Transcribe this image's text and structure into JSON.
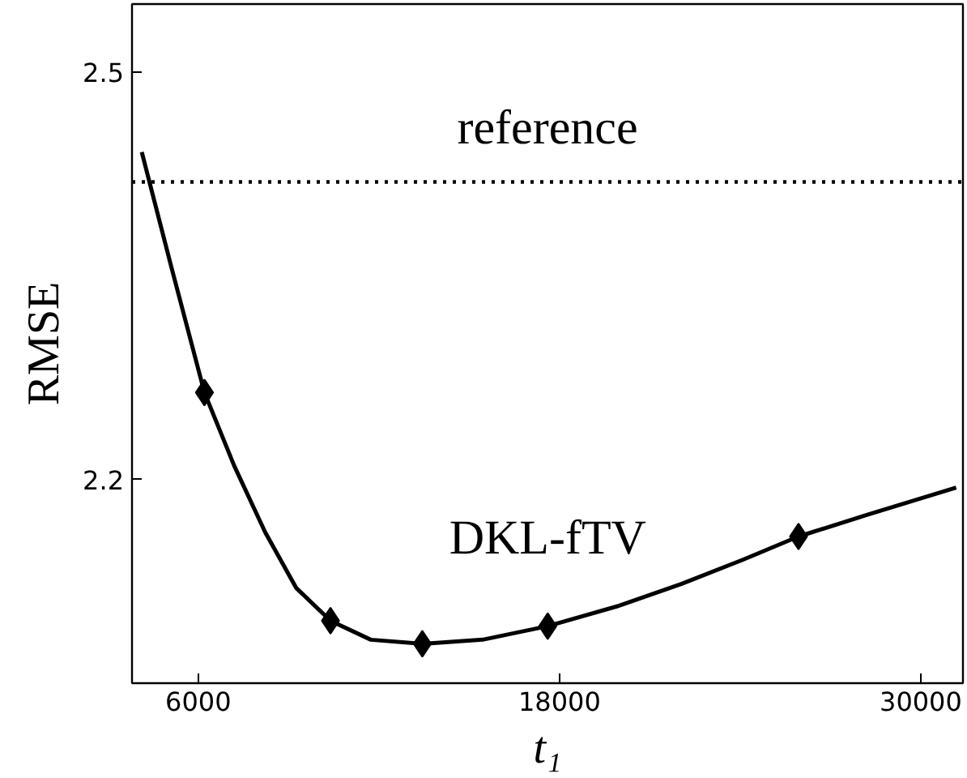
{
  "chart_data": {
    "type": "line",
    "xlabel": "t₁",
    "ylabel": "RMSE",
    "xlim": [
      3800,
      31400
    ],
    "ylim": [
      2.05,
      2.55
    ],
    "xticks": [
      6000,
      18000,
      30000
    ],
    "yticks": [
      2.2,
      2.5
    ],
    "grid": false,
    "series": [
      {
        "name": "DKL-fTV",
        "color": "#000000",
        "marker": "none",
        "line_style": "solid",
        "x": [
          4124,
          5134,
          6206,
          7196,
          8227,
          9258,
          10392,
          11732,
          13443,
          15443,
          17608,
          19979,
          22041,
          24103,
          25938,
          28227,
          31175
        ],
        "values": [
          2.441,
          2.354,
          2.264,
          2.21,
          2.161,
          2.12,
          2.096,
          2.082,
          2.079,
          2.082,
          2.092,
          2.107,
          2.123,
          2.141,
          2.158,
          2.174,
          2.194
        ]
      },
      {
        "type": "scatter",
        "color": "#000000",
        "marker": "diamond",
        "x": [
          6206,
          10392,
          13443,
          17608,
          25938
        ],
        "values": [
          2.264,
          2.096,
          2.079,
          2.092,
          2.158
        ]
      }
    ],
    "ref_lines": [
      {
        "axis": "y",
        "value": 2.419,
        "label": "reference",
        "color": "#000000",
        "line_style": "dotted"
      }
    ]
  }
}
